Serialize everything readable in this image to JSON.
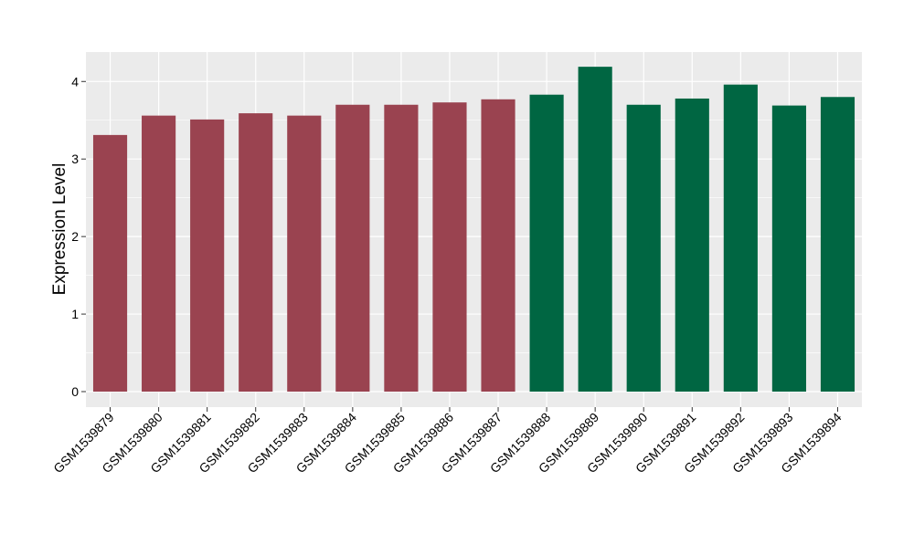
{
  "chart_data": {
    "type": "bar",
    "title": "",
    "xlabel": "",
    "ylabel": "Expression Level",
    "ylim": [
      -0.2,
      4.38
    ],
    "yticks": [
      0,
      1,
      2,
      3,
      4
    ],
    "grid": true,
    "legend": "none",
    "categories": [
      "GSM1539879",
      "GSM1539880",
      "GSM1539881",
      "GSM1539882",
      "GSM1539883",
      "GSM1539884",
      "GSM1539885",
      "GSM1539886",
      "GSM1539887",
      "GSM1539888",
      "GSM1539889",
      "GSM1539890",
      "GSM1539891",
      "GSM1539892",
      "GSM1539893",
      "GSM1539894"
    ],
    "values": [
      3.31,
      3.56,
      3.51,
      3.59,
      3.56,
      3.7,
      3.7,
      3.73,
      3.77,
      3.83,
      4.19,
      3.7,
      3.78,
      3.96,
      3.69,
      3.8
    ],
    "bar_colors": [
      "#9a4350",
      "#9a4350",
      "#9a4350",
      "#9a4350",
      "#9a4350",
      "#9a4350",
      "#9a4350",
      "#9a4350",
      "#9a4350",
      "#006642",
      "#006642",
      "#006642",
      "#006642",
      "#006642",
      "#006642",
      "#006642"
    ],
    "panel_background": "#ebebeb",
    "gridline_color": "#ffffff"
  }
}
